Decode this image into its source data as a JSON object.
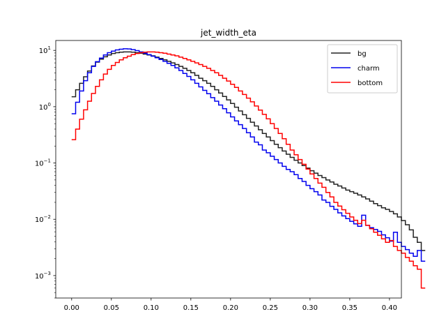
{
  "chart_data": {
    "type": "line",
    "title": "jet_width_eta",
    "xlabel": "",
    "ylabel": "",
    "xscale": "linear",
    "yscale": "log",
    "xlim": [
      -0.02,
      0.415
    ],
    "ylim": [
      0.0004,
      15
    ],
    "xticks": [
      0.0,
      0.05,
      0.1,
      0.15,
      0.2,
      0.25,
      0.3,
      0.35,
      0.4
    ],
    "xtick_labels": [
      "0.00",
      "0.05",
      "0.10",
      "0.15",
      "0.20",
      "0.25",
      "0.30",
      "0.35",
      "0.40"
    ],
    "yticks": [
      0.001,
      0.01,
      0.1,
      1,
      10
    ],
    "ytick_labels": [
      {
        "base": "10",
        "exp": "−3"
      },
      {
        "base": "10",
        "exp": "−2"
      },
      {
        "base": "10",
        "exp": "−1"
      },
      {
        "base": "10",
        "exp": "0"
      },
      {
        "base": "10",
        "exp": "1"
      }
    ],
    "grid": false,
    "legend_position": "top-right",
    "bin_edges_start": 0.0,
    "bin_width": 0.005,
    "series": [
      {
        "name": "bg",
        "color": "#222222",
        "values": [
          1.5,
          2.0,
          2.6,
          3.4,
          4.3,
          5.3,
          6.2,
          7.0,
          7.7,
          8.3,
          8.8,
          9.1,
          9.3,
          9.4,
          9.4,
          9.3,
          9.1,
          8.9,
          8.6,
          8.3,
          8.0,
          7.6,
          7.2,
          6.8,
          6.4,
          6.0,
          5.6,
          5.2,
          4.8,
          4.4,
          4.0,
          3.6,
          3.2,
          2.9,
          2.6,
          2.3,
          2.0,
          1.75,
          1.52,
          1.32,
          1.14,
          0.98,
          0.84,
          0.72,
          0.62,
          0.53,
          0.455,
          0.39,
          0.335,
          0.29,
          0.25,
          0.215,
          0.187,
          0.163,
          0.143,
          0.126,
          0.112,
          0.1,
          0.09,
          0.081,
          0.073,
          0.066,
          0.06,
          0.055,
          0.05,
          0.046,
          0.042,
          0.039,
          0.036,
          0.033,
          0.031,
          0.029,
          0.027,
          0.025,
          0.023,
          0.021,
          0.019,
          0.0175,
          0.016,
          0.015,
          0.0138,
          0.0125,
          0.011,
          0.0095,
          0.008,
          0.0065,
          0.0048,
          0.0039,
          0.0028
        ]
      },
      {
        "name": "charm",
        "color": "#0000ee",
        "values": [
          0.75,
          1.2,
          1.9,
          2.9,
          4.0,
          5.2,
          6.3,
          7.3,
          8.3,
          9.1,
          9.7,
          10.2,
          10.5,
          10.7,
          10.6,
          10.3,
          9.9,
          9.4,
          8.9,
          8.4,
          7.9,
          7.4,
          6.9,
          6.4,
          5.9,
          5.4,
          4.9,
          4.4,
          3.9,
          3.45,
          3.0,
          2.6,
          2.25,
          1.95,
          1.7,
          1.45,
          1.25,
          1.07,
          0.92,
          0.78,
          0.66,
          0.56,
          0.48,
          0.41,
          0.345,
          0.29,
          0.235,
          0.21,
          0.17,
          0.152,
          0.132,
          0.115,
          0.1,
          0.087,
          0.077,
          0.07,
          0.062,
          0.053,
          0.047,
          0.04,
          0.035,
          0.031,
          0.027,
          0.022,
          0.02,
          0.017,
          0.015,
          0.013,
          0.0115,
          0.0103,
          0.0092,
          0.0083,
          0.0075,
          0.0118,
          0.0078,
          0.0071,
          0.0066,
          0.0061,
          0.0053,
          0.0047,
          0.0041,
          0.0059,
          0.0039,
          0.0033,
          0.0029,
          0.0025,
          0.0022,
          0.0028,
          0.0018
        ]
      },
      {
        "name": "bottom",
        "color": "#ff0000",
        "values": [
          0.26,
          0.4,
          0.6,
          0.88,
          1.25,
          1.72,
          2.3,
          3.0,
          3.8,
          4.6,
          5.4,
          6.1,
          6.8,
          7.4,
          7.9,
          8.4,
          8.8,
          9.1,
          9.3,
          9.4,
          9.4,
          9.3,
          9.1,
          8.9,
          8.6,
          8.3,
          8.0,
          7.6,
          7.2,
          6.8,
          6.4,
          6.0,
          5.6,
          5.2,
          4.8,
          4.4,
          4.0,
          3.6,
          3.2,
          2.85,
          2.5,
          2.2,
          1.9,
          1.65,
          1.42,
          1.22,
          1.03,
          0.87,
          0.73,
          0.61,
          0.5,
          0.41,
          0.335,
          0.27,
          0.215,
          0.17,
          0.14,
          0.115,
          0.095,
          0.078,
          0.064,
          0.053,
          0.044,
          0.037,
          0.03,
          0.025,
          0.02,
          0.0172,
          0.0148,
          0.0128,
          0.011,
          0.0096,
          0.0084,
          0.0096,
          0.0078,
          0.0068,
          0.0059,
          0.0052,
          0.0045,
          0.0039,
          0.0042,
          0.0033,
          0.0028,
          0.0025,
          0.0021,
          0.0018,
          0.0015,
          0.0013,
          0.0006
        ]
      }
    ]
  }
}
